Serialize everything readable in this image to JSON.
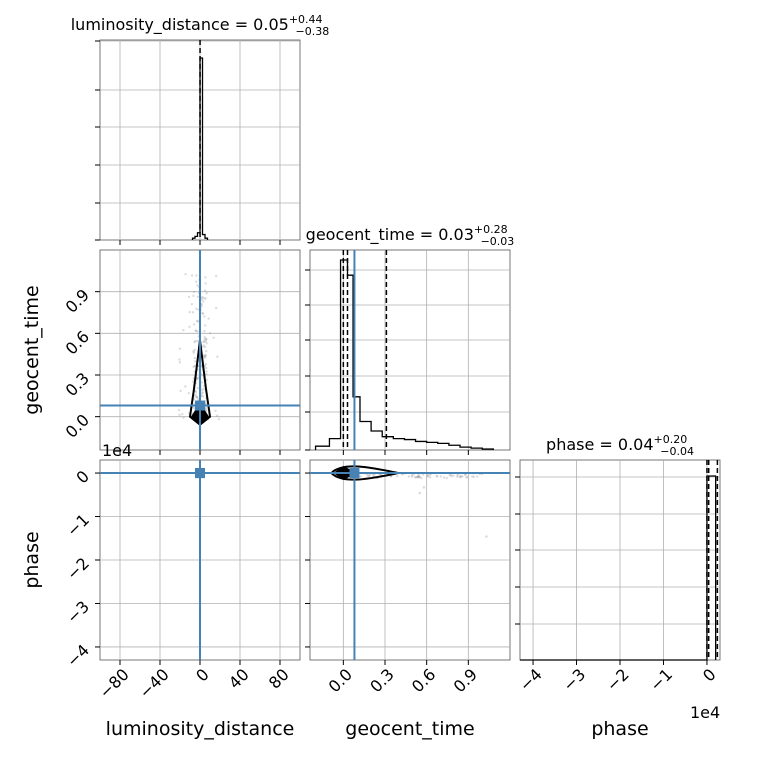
{
  "chart_data": {
    "type": "corner",
    "parameters": [
      {
        "name": "luminosity_distance",
        "median": 0.05,
        "plus": 0.44,
        "minus": 0.38,
        "title": "luminosity_distance = 0.05",
        "title_plus": "+0.44",
        "title_minus": "−0.38",
        "range": [
          -100,
          100
        ],
        "ticks": [
          -80,
          -40,
          0,
          40,
          80
        ],
        "tick_labels": [
          "−80",
          "−40",
          "0",
          "40",
          "80"
        ],
        "hist_x": [
          -7.5,
          -5,
          -2.5,
          0,
          2.5,
          5,
          7.5
        ],
        "hist_y": [
          0.01,
          0.02,
          0.04,
          1.0,
          0.03,
          0.01
        ],
        "quantiles": [
          0.05
        ],
        "truth": 0
      },
      {
        "name": "geocent_time",
        "median": 0.03,
        "plus": 0.28,
        "minus": 0.03,
        "title": "geocent_time = 0.03",
        "title_plus": "+0.28",
        "title_minus": "−0.03",
        "range": [
          -0.24,
          1.2
        ],
        "ticks": [
          0.0,
          0.3,
          0.6,
          0.9
        ],
        "tick_labels": [
          "0.0",
          "0.3",
          "0.6",
          "0.9"
        ],
        "hist_edges": [
          -0.2,
          -0.1,
          -0.02,
          0.03,
          0.07,
          0.12,
          0.2,
          0.28,
          0.36,
          0.44,
          0.52,
          0.6,
          0.68,
          0.76,
          0.84,
          0.92,
          1.0,
          1.08
        ],
        "hist_y": [
          0.02,
          0.06,
          1.0,
          0.92,
          0.28,
          0.15,
          0.1,
          0.07,
          0.06,
          0.055,
          0.045,
          0.04,
          0.035,
          0.025,
          0.015,
          0.01,
          0.005
        ],
        "quantiles": [
          0.0,
          0.03,
          0.31
        ],
        "truth": 0.08
      },
      {
        "name": "phase",
        "median": 0.04,
        "plus": 0.2,
        "minus": 0.04,
        "title": "phase = 0.04",
        "title_plus": "+0.20",
        "title_minus": "−0.04",
        "range": [
          -4.3,
          0.3
        ],
        "ticks": [
          -4,
          -3,
          -2,
          -1,
          0
        ],
        "tick_labels": [
          "−4",
          "−3",
          "−2",
          "−1",
          "0"
        ],
        "offset_label": "1e4",
        "hist_edges": [
          -0.15,
          0.0,
          0.2
        ],
        "hist_y": [
          0.0,
          0.92
        ],
        "quantiles": [
          0.0,
          0.04,
          0.24
        ],
        "truth": 0.0
      }
    ],
    "y_axis_labels": {
      "geocent_time": "geocent_time",
      "phase": "phase"
    },
    "x_axis_labels": [
      "luminosity_distance",
      "geocent_time",
      "phase"
    ],
    "grid": true
  }
}
